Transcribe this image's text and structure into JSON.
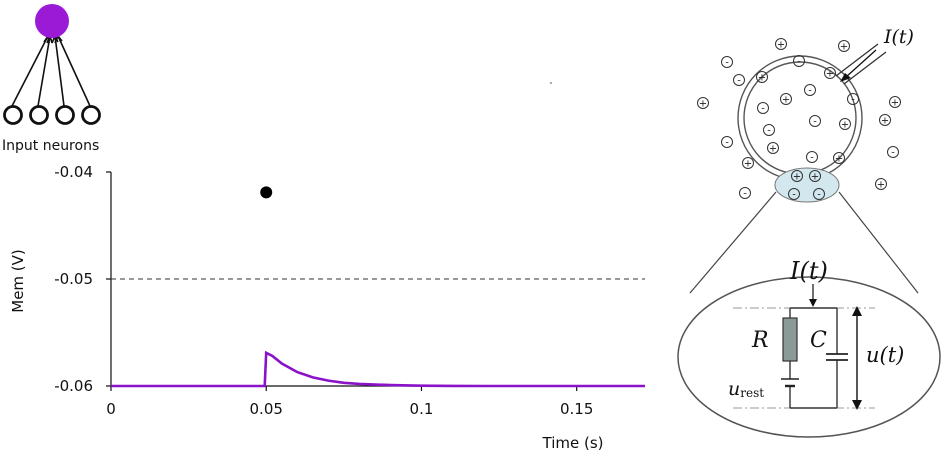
{
  "network": {
    "input_label": "Input neurons",
    "output_color": "#9a1ad6",
    "input_count": 4
  },
  "chart_data": {
    "type": "line",
    "title": "",
    "xlabel": "Time (s)",
    "ylabel": "Mem (V)",
    "xlim": [
      0,
      0.172
    ],
    "ylim": [
      -0.06,
      -0.04
    ],
    "x_ticks": [
      "0",
      "0.05",
      "0.1",
      "0.15"
    ],
    "x_tick_values": [
      0,
      0.05,
      0.1,
      0.15
    ],
    "y_ticks": [
      "-0.04",
      "-0.05",
      "-0.06"
    ],
    "y_tick_values": [
      -0.04,
      -0.05,
      -0.06
    ],
    "threshold": -0.05,
    "threshold_style": "dashed",
    "series": [
      {
        "color": "#8a12c8",
        "x": [
          0,
          0.0495,
          0.05,
          0.052,
          0.055,
          0.06,
          0.065,
          0.07,
          0.075,
          0.08,
          0.09,
          0.1,
          0.11,
          0.12,
          0.13,
          0.15,
          0.172
        ],
        "y": [
          -0.06,
          -0.06,
          -0.0569,
          -0.0572,
          -0.0579,
          -0.0587,
          -0.0592,
          -0.0595,
          -0.0597,
          -0.0598,
          -0.05992,
          -0.05997,
          -0.05999,
          -0.06,
          -0.06,
          -0.06,
          -0.06
        ]
      }
    ],
    "markers": [
      {
        "x": 0.05,
        "y": -0.0419,
        "color": "#000000"
      }
    ]
  },
  "cell": {
    "current_label": "I(t)",
    "ions": [
      "+",
      "-"
    ]
  },
  "circuit": {
    "current_label": "I(t)",
    "resistor_label": "R",
    "capacitor_label": "C",
    "voltage_label": "u(t)",
    "rest_label_main": "u",
    "rest_label_sub": "rest"
  }
}
